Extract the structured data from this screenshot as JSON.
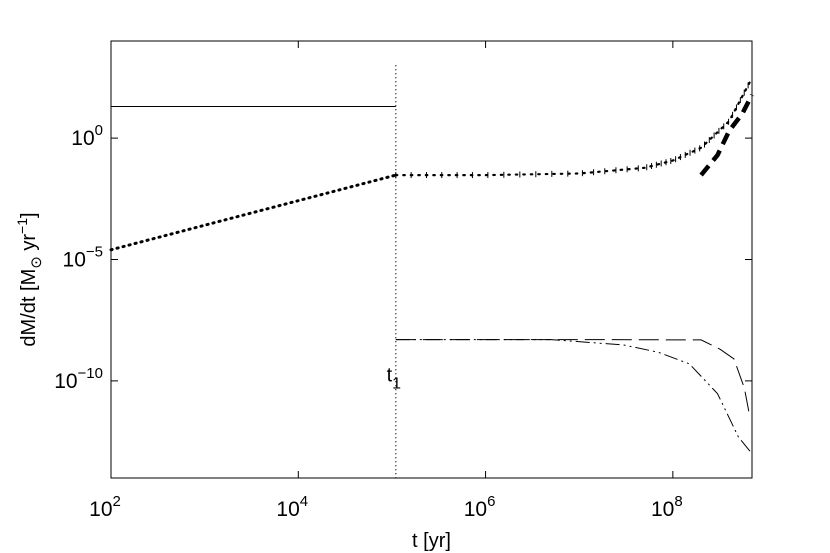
{
  "chart_data": {
    "type": "line",
    "title": "",
    "xlabel": "t [yr]",
    "ylabel": "dM/dt [M⊙ yr⁻¹]",
    "ylabel_parts": {
      "pre": "dM/dt [M",
      "sub": "⊙",
      "mid": " yr",
      "sup": "−1",
      "post": "]"
    },
    "xscale": "log",
    "yscale": "log",
    "xlim": [
      100,
      700000000
    ],
    "ylim": [
      1e-14,
      10000
    ],
    "grid": false,
    "legend": "none",
    "x_ticks": [
      {
        "value": 100,
        "base": "10",
        "exp": "2"
      },
      {
        "value": 10000,
        "base": "10",
        "exp": "4"
      },
      {
        "value": 1000000,
        "base": "10",
        "exp": "6"
      },
      {
        "value": 100000000,
        "base": "10",
        "exp": "8"
      }
    ],
    "y_ticks": [
      {
        "value": 1,
        "base": "10",
        "exp": "0"
      },
      {
        "value": 1e-05,
        "base": "10",
        "exp": "−5"
      },
      {
        "value": 1e-10,
        "base": "10",
        "exp": "−10"
      }
    ],
    "annotation": {
      "base": "t",
      "sub": "1",
      "x": 110000,
      "y": 1.5e-10
    },
    "vline": {
      "x": 110000,
      "y_range": [
        1e-14,
        1000
      ]
    },
    "series": [
      {
        "style": "solid",
        "width": 1,
        "points": [
          [
            100,
            20
          ],
          [
            110000,
            20
          ]
        ]
      },
      {
        "style": "dotted-thick",
        "width": 3,
        "points": [
          [
            100,
            2.5e-05
          ],
          [
            110000,
            0.03
          ]
        ]
      },
      {
        "style": "dotted-plus",
        "width": 2.2,
        "points": [
          [
            110000,
            0.03
          ],
          [
            1000000,
            0.03
          ],
          [
            10000000,
            0.035
          ],
          [
            50000000,
            0.06
          ],
          [
            100000000,
            0.12
          ],
          [
            200000000,
            0.4
          ],
          [
            400000000,
            5
          ],
          [
            700000000,
            300
          ]
        ]
      },
      {
        "style": "dashed-thick",
        "width": 4.5,
        "points": [
          [
            200000000,
            0.03
          ],
          [
            300000000,
            0.2
          ],
          [
            400000000,
            2
          ],
          [
            550000000,
            10
          ],
          [
            700000000,
            60
          ]
        ]
      },
      {
        "style": "dashed",
        "width": 1,
        "points": [
          [
            110000,
            5e-09
          ],
          [
            10000000,
            5e-09
          ],
          [
            200000000,
            4.9e-09
          ],
          [
            320000000,
            2e-09
          ],
          [
            450000000,
            8e-10
          ],
          [
            580000000,
            5e-11
          ],
          [
            650000000,
            5e-12
          ],
          [
            700000000,
            3e-12
          ]
        ]
      },
      {
        "style": "dashdot",
        "width": 1,
        "points": [
          [
            110000,
            5e-09
          ],
          [
            5000000,
            5e-09
          ],
          [
            30000000,
            3e-09
          ],
          [
            70000000,
            1.5e-09
          ],
          [
            150000000,
            5e-10
          ],
          [
            300000000,
            3e-11
          ],
          [
            500000000,
            5e-13
          ],
          [
            700000000,
            1e-13
          ]
        ]
      }
    ]
  }
}
